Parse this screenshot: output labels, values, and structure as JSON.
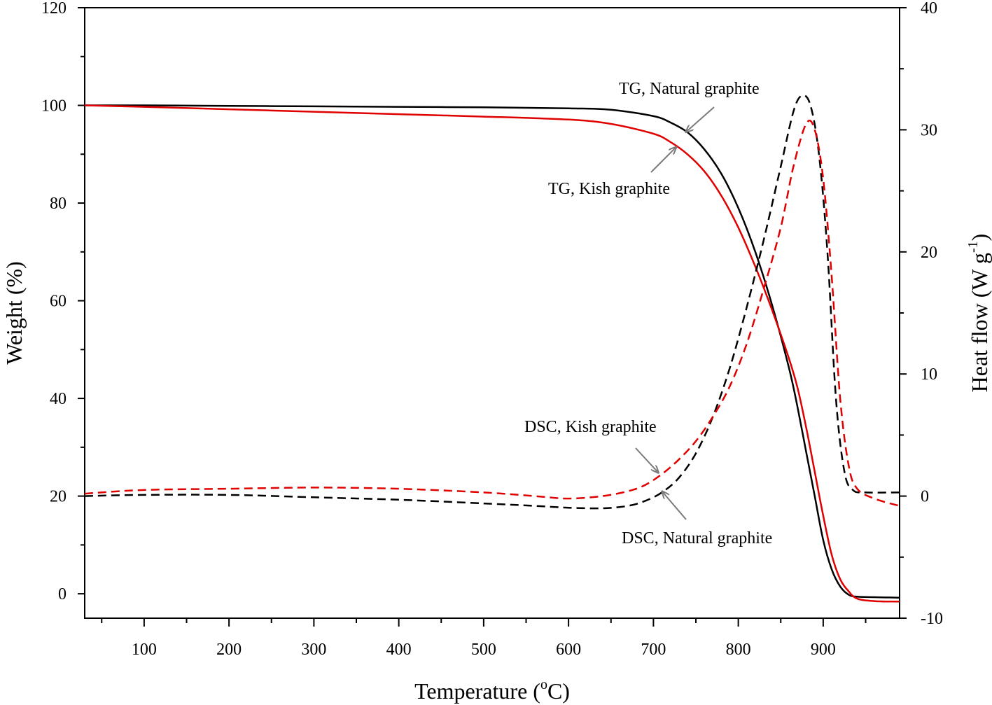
{
  "chart_data": {
    "type": "line",
    "xlabel": "Temperature (",
    "xlabel_sup": "o",
    "xlabel_end": "C)",
    "ylabel": "Weight (%)",
    "y2label": "Heat flow (W g",
    "y2label_sup": "-1",
    "y2label_end": ")",
    "xlim": [
      30,
      990
    ],
    "ylim": [
      -5,
      120
    ],
    "y2lim": [
      -10,
      40
    ],
    "xticks": [
      100,
      200,
      300,
      400,
      500,
      600,
      700,
      800,
      900
    ],
    "yticks": [
      0,
      20,
      40,
      60,
      80,
      100,
      120
    ],
    "y2ticks": [
      -10,
      0,
      10,
      20,
      30,
      40
    ],
    "series": [
      {
        "name": "TG, Natural graphite",
        "axis": "left",
        "color": "#000000",
        "style": "solid",
        "points": [
          [
            30,
            100
          ],
          [
            100,
            100
          ],
          [
            200,
            99.9
          ],
          [
            300,
            99.8
          ],
          [
            400,
            99.7
          ],
          [
            500,
            99.6
          ],
          [
            600,
            99.4
          ],
          [
            650,
            99.1
          ],
          [
            700,
            97.8
          ],
          [
            720,
            96.5
          ],
          [
            740,
            94.5
          ],
          [
            760,
            91
          ],
          [
            780,
            86
          ],
          [
            800,
            79
          ],
          [
            820,
            70
          ],
          [
            840,
            59
          ],
          [
            860,
            46
          ],
          [
            870,
            38
          ],
          [
            880,
            29
          ],
          [
            890,
            20
          ],
          [
            900,
            11
          ],
          [
            910,
            5
          ],
          [
            920,
            1.5
          ],
          [
            930,
            -0.2
          ],
          [
            940,
            -0.6
          ],
          [
            960,
            -0.7
          ],
          [
            990,
            -0.8
          ]
        ]
      },
      {
        "name": "TG, Kish graphite",
        "axis": "left",
        "color": "#e00000",
        "style": "solid",
        "points": [
          [
            30,
            100
          ],
          [
            100,
            99.7
          ],
          [
            200,
            99.2
          ],
          [
            300,
            98.7
          ],
          [
            400,
            98.2
          ],
          [
            500,
            97.7
          ],
          [
            600,
            97.1
          ],
          [
            650,
            96.2
          ],
          [
            700,
            94.2
          ],
          [
            720,
            92.5
          ],
          [
            740,
            90
          ],
          [
            760,
            86.5
          ],
          [
            780,
            81.5
          ],
          [
            800,
            75
          ],
          [
            820,
            67
          ],
          [
            840,
            58
          ],
          [
            860,
            48
          ],
          [
            870,
            42
          ],
          [
            880,
            34
          ],
          [
            890,
            25
          ],
          [
            900,
            16
          ],
          [
            910,
            8
          ],
          [
            920,
            3
          ],
          [
            930,
            0.5
          ],
          [
            940,
            -1
          ],
          [
            960,
            -1.5
          ],
          [
            990,
            -1.6
          ]
        ]
      },
      {
        "name": "DSC, Natural graphite",
        "axis": "right",
        "color": "#000000",
        "style": "dashed",
        "points": [
          [
            30,
            0
          ],
          [
            100,
            0.1
          ],
          [
            200,
            0.1
          ],
          [
            300,
            -0.1
          ],
          [
            400,
            -0.3
          ],
          [
            500,
            -0.6
          ],
          [
            560,
            -0.8
          ],
          [
            600,
            -0.95
          ],
          [
            640,
            -1
          ],
          [
            670,
            -0.8
          ],
          [
            690,
            -0.4
          ],
          [
            710,
            0.3
          ],
          [
            730,
            1.5
          ],
          [
            750,
            3.5
          ],
          [
            770,
            6.5
          ],
          [
            790,
            10.5
          ],
          [
            810,
            15.5
          ],
          [
            830,
            21
          ],
          [
            850,
            27
          ],
          [
            865,
            31.5
          ],
          [
            875,
            32.8
          ],
          [
            885,
            32
          ],
          [
            895,
            28
          ],
          [
            905,
            20
          ],
          [
            915,
            8
          ],
          [
            925,
            2
          ],
          [
            935,
            0.5
          ],
          [
            950,
            0.3
          ],
          [
            990,
            0.3
          ]
        ]
      },
      {
        "name": "DSC, Kish graphite",
        "axis": "right",
        "color": "#e00000",
        "style": "dashed",
        "points": [
          [
            30,
            0.2
          ],
          [
            100,
            0.5
          ],
          [
            200,
            0.6
          ],
          [
            300,
            0.7
          ],
          [
            400,
            0.6
          ],
          [
            500,
            0.3
          ],
          [
            560,
            0
          ],
          [
            600,
            -0.2
          ],
          [
            640,
            0
          ],
          [
            670,
            0.4
          ],
          [
            690,
            0.9
          ],
          [
            710,
            1.8
          ],
          [
            730,
            3
          ],
          [
            750,
            4.5
          ],
          [
            770,
            6.5
          ],
          [
            790,
            9
          ],
          [
            810,
            12.5
          ],
          [
            830,
            17
          ],
          [
            850,
            22
          ],
          [
            865,
            27
          ],
          [
            880,
            30.5
          ],
          [
            890,
            30
          ],
          [
            900,
            26
          ],
          [
            910,
            18
          ],
          [
            920,
            8
          ],
          [
            930,
            2.5
          ],
          [
            940,
            0.6
          ],
          [
            960,
            -0.2
          ],
          [
            990,
            -0.8
          ]
        ]
      }
    ],
    "annotations": [
      {
        "id": "tg-natural",
        "text": "TG, Natural graphite",
        "target_x": 738,
        "target_y": 94.5,
        "axis": "left"
      },
      {
        "id": "tg-kish",
        "text": "TG, Kish graphite",
        "target_x": 727,
        "target_y": 91.5,
        "axis": "left"
      },
      {
        "id": "dsc-kish",
        "text": "DSC, Kish graphite",
        "target_x": 706,
        "target_y": 1.9,
        "axis": "right"
      },
      {
        "id": "dsc-natural",
        "text": "DSC, Natural graphite",
        "target_x": 710,
        "target_y": 0.4,
        "axis": "right"
      }
    ]
  }
}
